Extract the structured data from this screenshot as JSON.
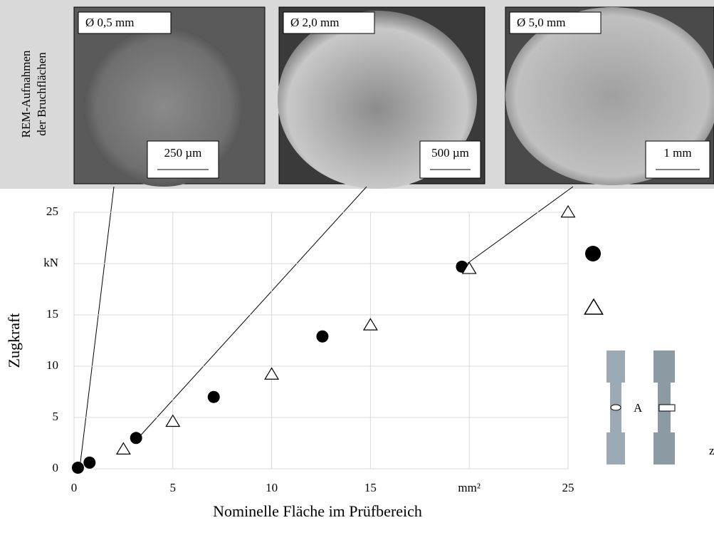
{
  "chart_data": {
    "type": "scatter",
    "ylabel": "Zugkraft",
    "xlabel": "Nominelle Fläche im Prüfbereich",
    "xlim": [
      0,
      25
    ],
    "ylim": [
      0,
      25
    ],
    "xticks": [
      0,
      5,
      10,
      15,
      {
        "value": 20,
        "label": "mm²"
      },
      25
    ],
    "yticks": [
      0,
      5,
      10,
      15,
      {
        "value": 20,
        "label": "kN"
      },
      25
    ],
    "grid": true,
    "series": [
      {
        "marker": "circle",
        "color": "#000000",
        "x": [
          0.196,
          0.785,
          3.14,
          7.07,
          12.57,
          19.63
        ],
        "values": [
          0.1,
          0.6,
          3.0,
          7.0,
          12.9,
          19.7
        ]
      },
      {
        "marker": "triangle",
        "color": "#000000",
        "x": [
          2.5,
          5,
          10,
          15,
          20,
          25
        ],
        "values": [
          1.9,
          4.6,
          9.2,
          14.0,
          19.5,
          25.0
        ]
      }
    ],
    "annotations": [
      "A",
      "z"
    ]
  },
  "panel": {
    "title_lines": [
      "REM-Aufnahmen",
      "der Bruchflächen"
    ],
    "images": [
      {
        "label": "Ø 0,5 mm",
        "scale": "250 µm"
      },
      {
        "label": "Ø 2,0 mm",
        "scale": "500 µm"
      },
      {
        "label": "Ø 5,0 mm",
        "scale": "1 mm"
      }
    ]
  }
}
